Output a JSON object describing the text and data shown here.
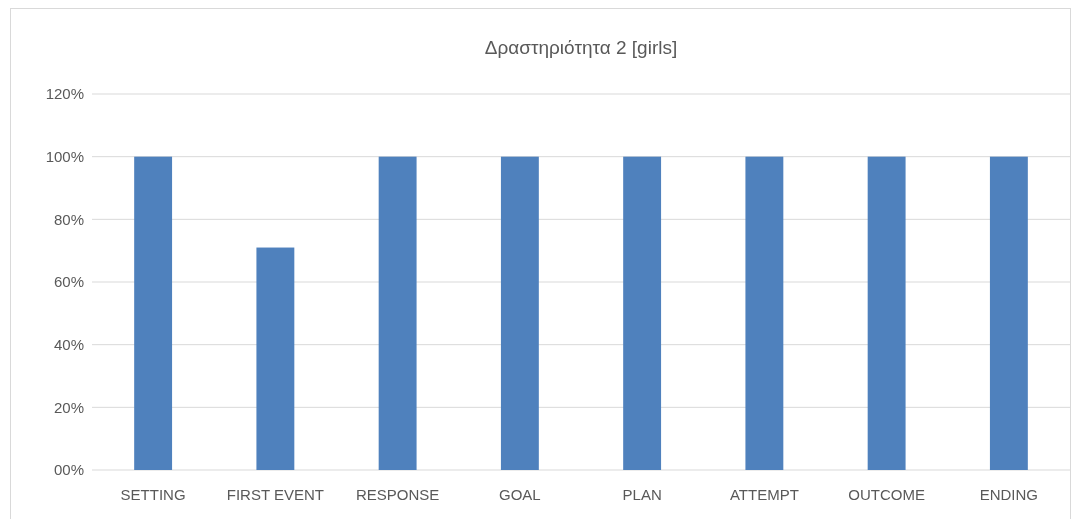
{
  "chart_data": {
    "type": "bar",
    "title": "Δραστηριότητα 2 [girls]",
    "categories": [
      "SETTING",
      "FIRST EVENT",
      "RESPONSE",
      "GOAL",
      "PLAN",
      "ATTEMPT",
      "OUTCOME",
      "ENDING"
    ],
    "values": [
      100,
      71,
      100,
      100,
      100,
      100,
      100,
      100
    ],
    "color": "#4f81bd",
    "ylim": [
      0,
      120
    ],
    "yticks": [
      {
        "value": 0,
        "label": "00%"
      },
      {
        "value": 20,
        "label": "20%"
      },
      {
        "value": 40,
        "label": "40%"
      },
      {
        "value": 60,
        "label": "60%"
      },
      {
        "value": 80,
        "label": "80%"
      },
      {
        "value": 100,
        "label": "100%"
      },
      {
        "value": 120,
        "label": "120%"
      }
    ],
    "grid": "y"
  }
}
